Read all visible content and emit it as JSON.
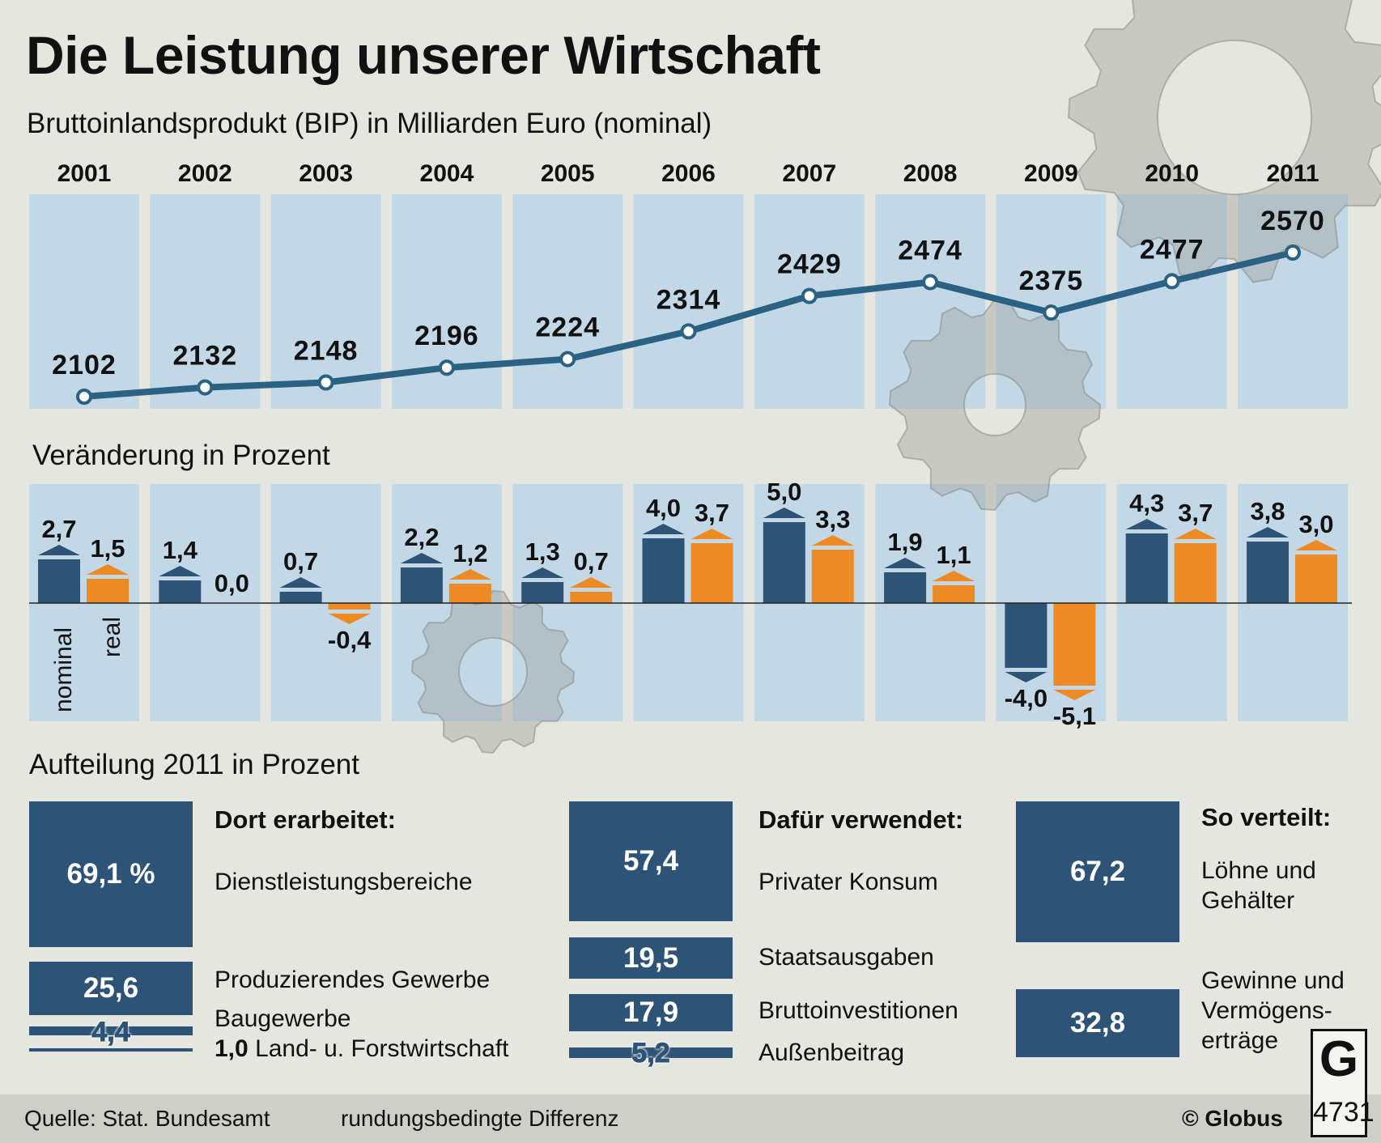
{
  "title": "Die Leistung unserer Wirtschaft",
  "subtitle_bip": "Bruttoinlandsprodukt (BIP) in Milliarden Euro (nominal)",
  "subtitle_change": "Veränderung in Prozent",
  "subtitle_split": "Aufteilung 2011 in Prozent",
  "legend": {
    "nominal": "nominal",
    "real": "real"
  },
  "colors": {
    "nominal": "#2d5376",
    "real": "#ee8a23",
    "panel": "#c2d8e6",
    "line": "#2b6183",
    "background": "#e6e6e1",
    "gear": "#9a9a96"
  },
  "chart_data": [
    {
      "type": "line",
      "title": "Bruttoinlandsprodukt (BIP) in Milliarden Euro (nominal)",
      "categories": [
        "2001",
        "2002",
        "2003",
        "2004",
        "2005",
        "2006",
        "2007",
        "2008",
        "2009",
        "2010",
        "2011"
      ],
      "values": [
        2102,
        2132,
        2148,
        2196,
        2224,
        2314,
        2429,
        2474,
        2375,
        2477,
        2570
      ],
      "value_labels": [
        "2102",
        "2132",
        "2148",
        "2196",
        "2224",
        "2314",
        "2429",
        "2474",
        "2375",
        "2477",
        "2570"
      ]
    },
    {
      "type": "bar",
      "title": "Veränderung in Prozent",
      "categories": [
        "2001",
        "2002",
        "2003",
        "2004",
        "2005",
        "2006",
        "2007",
        "2008",
        "2009",
        "2010",
        "2011"
      ],
      "series": [
        {
          "name": "nominal",
          "values": [
            2.7,
            1.4,
            0.7,
            2.2,
            1.3,
            4.0,
            5.0,
            1.9,
            -4.0,
            4.3,
            3.8
          ],
          "labels": [
            "2,7",
            "1,4",
            "0,7",
            "2,2",
            "1,3",
            "4,0",
            "5,0",
            "1,9",
            "-4,0",
            "4,3",
            "3,8"
          ]
        },
        {
          "name": "real",
          "values": [
            1.5,
            0.0,
            -0.4,
            1.2,
            0.7,
            3.7,
            3.3,
            1.1,
            -5.1,
            3.7,
            3.0
          ],
          "labels": [
            "1,5",
            "0,0",
            "-0,4",
            "1,2",
            "0,7",
            "3,7",
            "3,3",
            "1,1",
            "-5,1",
            "3,7",
            "3,0"
          ]
        }
      ]
    }
  ],
  "split": {
    "worked": {
      "header": "Dort erarbeitet:",
      "items": [
        {
          "value": "69,1 %",
          "label": "Dienstleistungsbereiche"
        },
        {
          "value": "25,6",
          "label": "Produzierendes Gewerbe"
        },
        {
          "value": "4,4",
          "label": "Baugewerbe"
        },
        {
          "value": "1,0",
          "label": "Land- u. Forstwirtschaft"
        }
      ]
    },
    "used": {
      "header": "Dafür verwendet:",
      "items": [
        {
          "value": "57,4",
          "label": "Privater Konsum"
        },
        {
          "value": "19,5",
          "label": "Staatsausgaben"
        },
        {
          "value": "17,9",
          "label": "Bruttoinvestitionen"
        },
        {
          "value": "5,2",
          "label": "Außenbeitrag"
        }
      ]
    },
    "distributed": {
      "header": "So verteilt:",
      "items": [
        {
          "value": "67,2",
          "label_lines": [
            "Löhne und",
            "Gehälter"
          ]
        },
        {
          "value": "32,8",
          "label_lines": [
            "Gewinne und",
            "Vermögens-",
            "erträge"
          ]
        }
      ]
    }
  },
  "footer": {
    "source": "Quelle: Stat. Bundesamt",
    "note": "rundungsbedingte Differenz",
    "copyright": "© Globus",
    "logo_letter": "G",
    "logo_number": "4731"
  }
}
